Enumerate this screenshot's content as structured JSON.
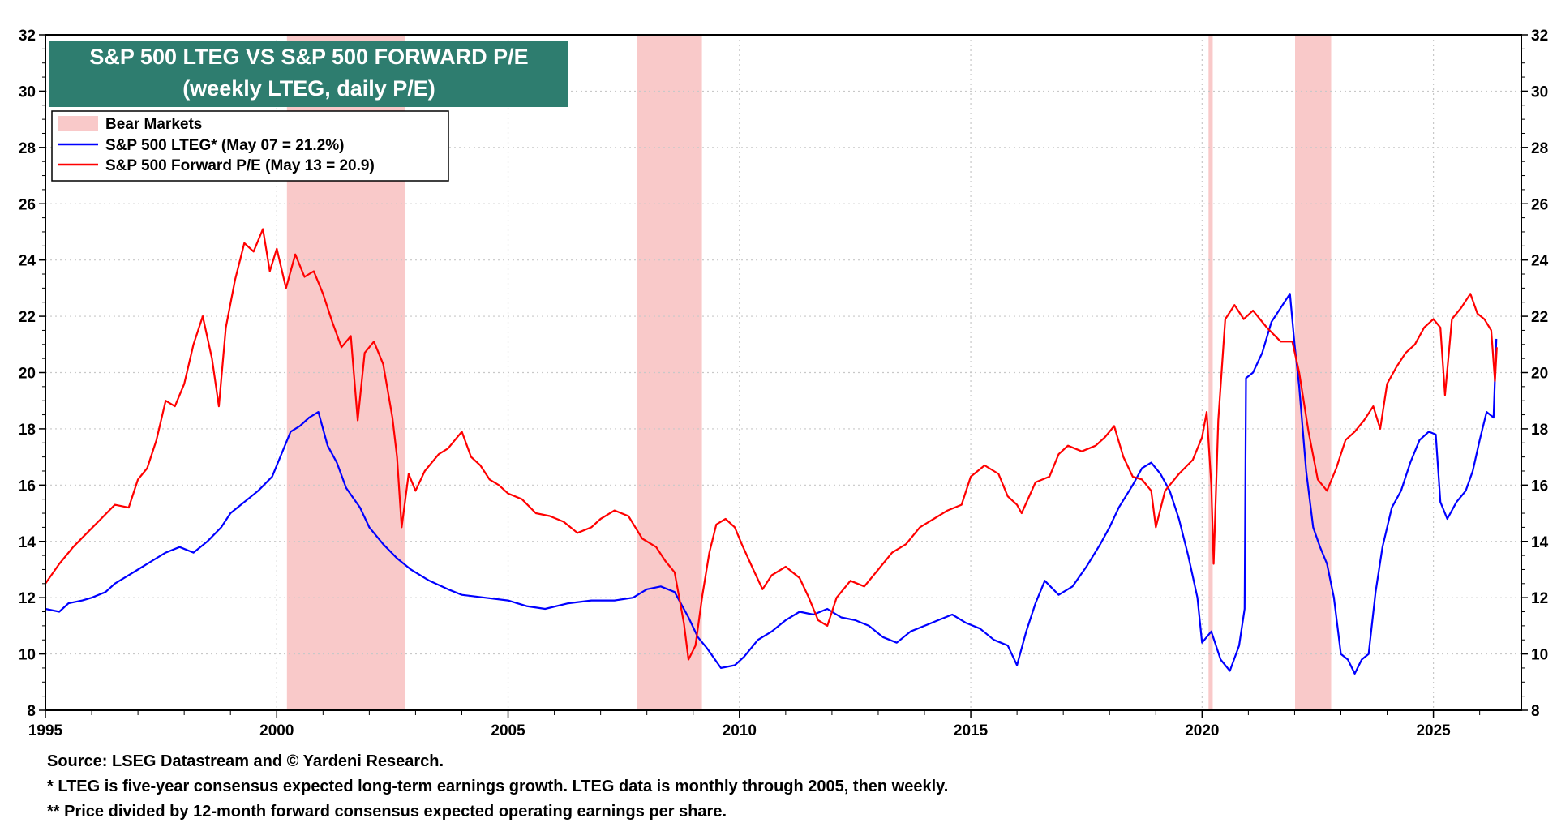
{
  "chart_data": {
    "type": "line",
    "title": "S&P 500 LTEG VS S&P 500 FORWARD P/E",
    "subtitle": "(weekly LTEG, daily P/E)",
    "xlabel": "",
    "ylabel": "",
    "xlim": [
      1995,
      2026.9
    ],
    "ylim": [
      8,
      32
    ],
    "y_ticks": [
      8,
      10,
      12,
      14,
      16,
      18,
      20,
      22,
      24,
      26,
      28,
      30,
      32
    ],
    "y_tick_labels": [
      "8",
      "10",
      "12",
      "14",
      "16",
      "18",
      "20",
      "22",
      "24",
      "26",
      "28",
      "30",
      "32"
    ],
    "x_ticks": [
      1995,
      2000,
      2005,
      2010,
      2015,
      2020,
      2025
    ],
    "x_tick_labels": [
      "1995",
      "2000",
      "2005",
      "2010",
      "2015",
      "2020",
      "2025"
    ],
    "grid": true,
    "legend_position": "top-left",
    "bear_markets": {
      "label": "Bear Markets",
      "color": "#f9c9c9",
      "periods": [
        [
          2000.22,
          2002.78
        ],
        [
          2007.78,
          2009.19
        ],
        [
          2020.14,
          2020.23
        ],
        [
          2022.01,
          2022.79
        ]
      ]
    },
    "series": [
      {
        "name": "S&P 500 LTEG* (May 07 = 21.2%)",
        "color": "#0000ff",
        "x": [
          1995.0,
          1995.3,
          1995.5,
          1995.8,
          1996.0,
          1996.3,
          1996.5,
          1996.8,
          1997.0,
          1997.3,
          1997.6,
          1997.9,
          1998.2,
          1998.5,
          1998.8,
          1999.0,
          1999.3,
          1999.6,
          1999.9,
          2000.1,
          2000.3,
          2000.5,
          2000.7,
          2000.9,
          2001.1,
          2001.3,
          2001.5,
          2001.8,
          2002.0,
          2002.3,
          2002.6,
          2002.9,
          2003.3,
          2003.7,
          2004.0,
          2004.5,
          2005.0,
          2005.4,
          2005.8,
          2006.3,
          2006.8,
          2007.3,
          2007.7,
          2008.0,
          2008.3,
          2008.6,
          2008.9,
          2009.1,
          2009.3,
          2009.6,
          2009.9,
          2010.1,
          2010.4,
          2010.7,
          2011.0,
          2011.3,
          2011.6,
          2011.9,
          2012.2,
          2012.5,
          2012.8,
          2013.1,
          2013.4,
          2013.7,
          2014.0,
          2014.3,
          2014.6,
          2014.9,
          2015.2,
          2015.5,
          2015.8,
          2016.0,
          2016.2,
          2016.4,
          2016.6,
          2016.9,
          2017.2,
          2017.5,
          2017.8,
          2018.0,
          2018.2,
          2018.5,
          2018.7,
          2018.9,
          2019.1,
          2019.3,
          2019.5,
          2019.7,
          2019.9,
          2020.0,
          2020.2,
          2020.4,
          2020.6,
          2020.8,
          2020.92,
          2020.95,
          2021.1,
          2021.3,
          2021.5,
          2021.7,
          2021.9,
          2022.0,
          2022.1,
          2022.25,
          2022.4,
          2022.55,
          2022.7,
          2022.85,
          2023.0,
          2023.15,
          2023.3,
          2023.45,
          2023.6,
          2023.75,
          2023.9,
          2024.1,
          2024.3,
          2024.5,
          2024.7,
          2024.9,
          2025.05,
          2025.15,
          2025.3,
          2025.5,
          2025.7,
          2025.85,
          2026.0,
          2026.15,
          2026.3,
          2026.36
        ],
        "values": [
          11.6,
          11.5,
          11.8,
          11.9,
          12.0,
          12.2,
          12.5,
          12.8,
          13.0,
          13.3,
          13.6,
          13.8,
          13.6,
          14.0,
          14.5,
          15.0,
          15.4,
          15.8,
          16.3,
          17.1,
          17.9,
          18.1,
          18.4,
          18.6,
          17.4,
          16.8,
          15.9,
          15.2,
          14.5,
          13.9,
          13.4,
          13.0,
          12.6,
          12.3,
          12.1,
          12.0,
          11.9,
          11.7,
          11.6,
          11.8,
          11.9,
          11.9,
          12.0,
          12.3,
          12.4,
          12.2,
          11.3,
          10.6,
          10.2,
          9.5,
          9.6,
          9.9,
          10.5,
          10.8,
          11.2,
          11.5,
          11.4,
          11.6,
          11.3,
          11.2,
          11.0,
          10.6,
          10.4,
          10.8,
          11.0,
          11.2,
          11.4,
          11.1,
          10.9,
          10.5,
          10.3,
          9.6,
          10.8,
          11.8,
          12.6,
          12.1,
          12.4,
          13.1,
          13.9,
          14.5,
          15.2,
          16.0,
          16.6,
          16.8,
          16.4,
          15.8,
          14.8,
          13.5,
          12.0,
          10.4,
          10.8,
          9.8,
          9.4,
          10.3,
          11.6,
          19.8,
          20.0,
          20.7,
          21.8,
          22.3,
          22.8,
          21.0,
          19.5,
          16.5,
          14.5,
          13.8,
          13.2,
          12.0,
          10.0,
          9.8,
          9.3,
          9.8,
          10.0,
          12.2,
          13.8,
          15.2,
          15.8,
          16.8,
          17.6,
          17.9,
          17.8,
          15.4,
          14.8,
          15.4,
          15.8,
          16.5,
          17.6,
          18.6,
          18.4,
          21.2
        ]
      },
      {
        "name": "S&P 500 Forward P/E (May 13 = 20.9)",
        "color": "#ff0000",
        "x": [
          1995.0,
          1995.3,
          1995.6,
          1995.9,
          1996.2,
          1996.5,
          1996.8,
          1997.0,
          1997.2,
          1997.4,
          1997.6,
          1997.8,
          1998.0,
          1998.2,
          1998.4,
          1998.6,
          1998.75,
          1998.9,
          1999.1,
          1999.3,
          1999.5,
          1999.7,
          1999.85,
          2000.0,
          2000.2,
          2000.4,
          2000.6,
          2000.8,
          2001.0,
          2001.2,
          2001.4,
          2001.6,
          2001.75,
          2001.9,
          2002.1,
          2002.3,
          2002.5,
          2002.6,
          2002.7,
          2002.85,
          2003.0,
          2003.2,
          2003.5,
          2003.7,
          2004.0,
          2004.2,
          2004.4,
          2004.6,
          2004.8,
          2005.0,
          2005.3,
          2005.6,
          2005.9,
          2006.2,
          2006.5,
          2006.8,
          2007.0,
          2007.3,
          2007.6,
          2007.9,
          2008.2,
          2008.4,
          2008.6,
          2008.8,
          2008.9,
          2009.05,
          2009.2,
          2009.35,
          2009.5,
          2009.7,
          2009.9,
          2010.05,
          2010.3,
          2010.5,
          2010.7,
          2011.0,
          2011.3,
          2011.5,
          2011.7,
          2011.9,
          2012.1,
          2012.4,
          2012.7,
          2013.0,
          2013.3,
          2013.6,
          2013.9,
          2014.2,
          2014.5,
          2014.8,
          2015.0,
          2015.3,
          2015.6,
          2015.8,
          2016.0,
          2016.1,
          2016.4,
          2016.7,
          2016.9,
          2017.1,
          2017.4,
          2017.7,
          2017.9,
          2018.1,
          2018.3,
          2018.5,
          2018.7,
          2018.9,
          2019.0,
          2019.2,
          2019.5,
          2019.8,
          2020.0,
          2020.1,
          2020.2,
          2020.25,
          2020.35,
          2020.5,
          2020.7,
          2020.9,
          2021.1,
          2021.4,
          2021.7,
          2021.95,
          2022.1,
          2022.3,
          2022.5,
          2022.7,
          2022.9,
          2023.1,
          2023.3,
          2023.5,
          2023.7,
          2023.85,
          2024.0,
          2024.2,
          2024.4,
          2024.6,
          2024.8,
          2025.0,
          2025.15,
          2025.25,
          2025.4,
          2025.6,
          2025.8,
          2025.95,
          2026.1,
          2026.25,
          2026.33,
          2026.37
        ],
        "values": [
          12.5,
          13.2,
          13.8,
          14.3,
          14.8,
          15.3,
          15.2,
          16.2,
          16.6,
          17.6,
          19.0,
          18.8,
          19.6,
          21.0,
          22.0,
          20.5,
          18.8,
          21.6,
          23.3,
          24.6,
          24.3,
          25.1,
          23.6,
          24.4,
          23.0,
          24.2,
          23.4,
          23.6,
          22.8,
          21.8,
          20.9,
          21.3,
          18.3,
          20.7,
          21.1,
          20.3,
          18.4,
          17.0,
          14.5,
          16.4,
          15.8,
          16.5,
          17.1,
          17.3,
          17.9,
          17.0,
          16.7,
          16.2,
          16.0,
          15.7,
          15.5,
          15.0,
          14.9,
          14.7,
          14.3,
          14.5,
          14.8,
          15.1,
          14.9,
          14.1,
          13.8,
          13.3,
          12.9,
          11.1,
          9.8,
          10.3,
          12.1,
          13.6,
          14.6,
          14.8,
          14.5,
          13.9,
          13.0,
          12.3,
          12.8,
          13.1,
          12.7,
          12.0,
          11.2,
          11.0,
          12.0,
          12.6,
          12.4,
          13.0,
          13.6,
          13.9,
          14.5,
          14.8,
          15.1,
          15.3,
          16.3,
          16.7,
          16.4,
          15.6,
          15.3,
          15.0,
          16.1,
          16.3,
          17.1,
          17.4,
          17.2,
          17.4,
          17.7,
          18.1,
          17.0,
          16.3,
          16.2,
          15.8,
          14.5,
          15.8,
          16.4,
          16.9,
          17.7,
          18.6,
          16.0,
          13.2,
          18.3,
          21.9,
          22.4,
          21.9,
          22.2,
          21.6,
          21.1,
          21.1,
          20.0,
          17.9,
          16.2,
          15.8,
          16.6,
          17.6,
          17.9,
          18.3,
          18.8,
          18.0,
          19.6,
          20.2,
          20.7,
          21.0,
          21.6,
          21.9,
          21.6,
          19.2,
          21.9,
          22.3,
          22.8,
          22.1,
          21.9,
          21.5,
          19.7,
          20.9
        ]
      }
    ],
    "legend": [
      {
        "label": "Bear Markets",
        "kind": "patch",
        "color": "#f9c9c9"
      },
      {
        "label": "S&P 500 LTEG* (May 07 = 21.2%)",
        "kind": "line",
        "color": "#0000ff"
      },
      {
        "label": "S&P 500 Forward P/E (May 13 = 20.9)",
        "kind": "line",
        "color": "#ff0000"
      }
    ],
    "title_box_color": "#2e7d6f"
  },
  "footnotes": {
    "source": "Source: LSEG Datastream and © Yardeni Research.",
    "note1": "*  LTEG is five-year consensus expected long-term earnings growth. LTEG data is monthly through 2005, then weekly.",
    "note2": "** Price divided by 12-month forward consensus expected operating earnings per share."
  }
}
